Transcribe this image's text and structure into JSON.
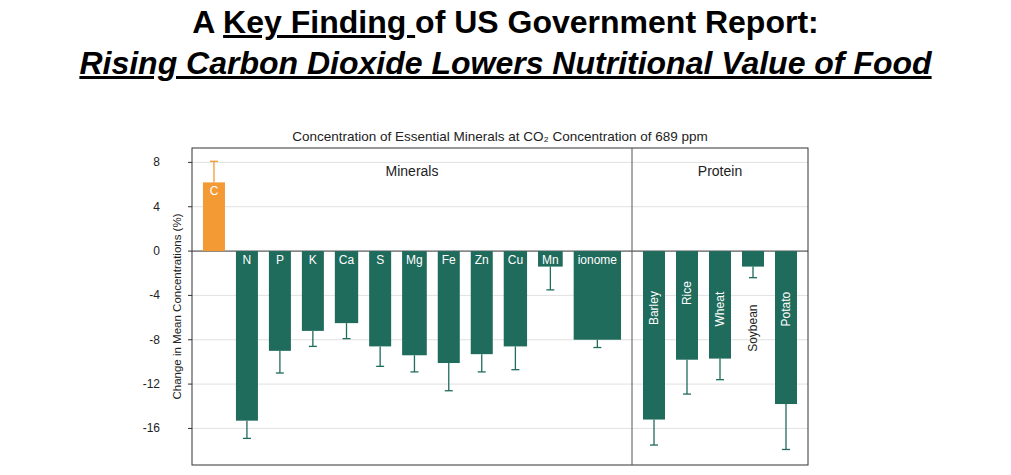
{
  "header": {
    "prefix": "A ",
    "underlined": "Key Finding ",
    "suffix": "of US Government Report:",
    "headline": "Rising Carbon Dioxide Lowers Nutritional Value of Food",
    "chart_title": "Concentration of Essential Minerals at CO₂ Concentration of 689 ppm"
  },
  "chart_data": [
    {
      "type": "bar",
      "title": "Minerals",
      "ylabel": "Change in Mean Concentrations (%)",
      "categories": [
        "C",
        "N",
        "P",
        "K",
        "Ca",
        "S",
        "Mg",
        "Fe",
        "Zn",
        "Cu",
        "Mn",
        "ionome"
      ],
      "values": [
        6.2,
        -15.3,
        -9.0,
        -7.2,
        -6.5,
        -8.6,
        -9.4,
        -10.1,
        -9.3,
        -8.6,
        -1.4,
        -8.0
      ],
      "errors": [
        1.9,
        1.6,
        2.0,
        1.4,
        1.4,
        1.8,
        1.5,
        2.5,
        1.6,
        2.1,
        2.1,
        0.7
      ],
      "colors": [
        "#f39a34",
        "#1f6b5c",
        "#1f6b5c",
        "#1f6b5c",
        "#1f6b5c",
        "#1f6b5c",
        "#1f6b5c",
        "#1f6b5c",
        "#1f6b5c",
        "#1f6b5c",
        "#1f6b5c",
        "#1f6b5c"
      ],
      "ylim": [
        -19.3,
        9.3
      ],
      "yticks": [
        -16,
        -12,
        -8,
        -4,
        0,
        4,
        8
      ],
      "grid": true
    },
    {
      "type": "bar",
      "title": "Protein",
      "categories": [
        "Barley",
        "Rice",
        "Wheat",
        "Soybean",
        "Potato"
      ],
      "values": [
        -15.2,
        -9.8,
        -9.7,
        -1.4,
        -13.8
      ],
      "errors": [
        2.3,
        3.1,
        1.9,
        1.0,
        4.1
      ],
      "color": "#1f6b5c",
      "ylim": [
        -19.3,
        9.3
      ]
    }
  ]
}
